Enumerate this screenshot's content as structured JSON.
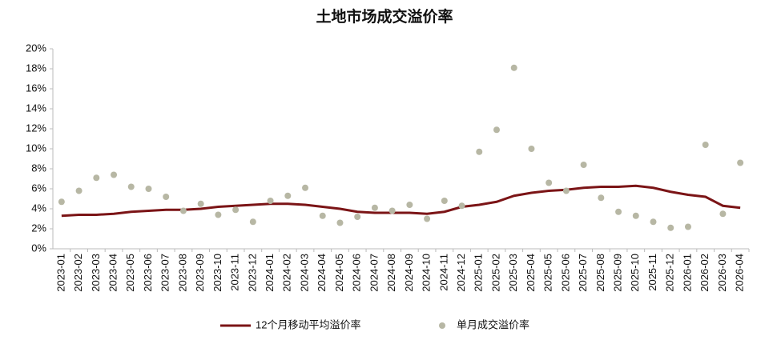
{
  "chart_data": {
    "type": "line",
    "title": "土地市场成交溢价率",
    "categories": [
      "2023-01",
      "2023-02",
      "2023-03",
      "2023-04",
      "2023-05",
      "2023-06",
      "2023-07",
      "2023-08",
      "2023-09",
      "2023-10",
      "2023-11",
      "2023-12",
      "2024-01",
      "2024-02",
      "2024-03",
      "2024-04",
      "2024-05",
      "2024-06",
      "2024-07",
      "2024-08",
      "2024-09",
      "2024-10",
      "2024-11",
      "2024-12",
      "2025-01",
      "2025-02",
      "2025-03",
      "2025-04",
      "2025-05",
      "2025-06",
      "2025-07",
      "2025-08",
      "2025-09",
      "2025-10",
      "2025-11",
      "2025-12",
      "2026-01",
      "2026-02",
      "2026-03",
      "2026-04"
    ],
    "series": [
      {
        "name": "12个月移动平均溢价率",
        "type": "line",
        "color": "#7b1416",
        "values": [
          3.3,
          3.4,
          3.4,
          3.5,
          3.7,
          3.8,
          3.9,
          3.9,
          4.0,
          4.2,
          4.3,
          4.4,
          4.5,
          4.5,
          4.4,
          4.2,
          4.0,
          3.7,
          3.6,
          3.6,
          3.6,
          3.5,
          3.7,
          4.2,
          4.4,
          4.7,
          5.3,
          5.6,
          5.8,
          5.9,
          6.1,
          6.2,
          6.2,
          6.3,
          6.1,
          5.7,
          5.4,
          5.2,
          4.3,
          4.1
        ]
      },
      {
        "name": "单月成交溢价率",
        "type": "scatter",
        "color": "#b7b7a4",
        "values": [
          4.7,
          5.8,
          7.1,
          7.4,
          6.2,
          6.0,
          5.2,
          3.8,
          4.5,
          3.4,
          3.9,
          2.7,
          4.8,
          5.3,
          6.1,
          3.3,
          2.6,
          3.2,
          4.1,
          3.8,
          4.4,
          3.0,
          4.8,
          4.3,
          9.7,
          11.9,
          18.1,
          10.0,
          6.6,
          5.8,
          8.4,
          5.1,
          3.7,
          3.3,
          2.7,
          2.1,
          2.2,
          10.4,
          3.5,
          8.6
        ]
      }
    ],
    "ylim": [
      0,
      20
    ],
    "yticks": [
      {
        "value": 0,
        "label": "0%"
      },
      {
        "value": 2,
        "label": "2%"
      },
      {
        "value": 4,
        "label": "4%"
      },
      {
        "value": 6,
        "label": "6%"
      },
      {
        "value": 8,
        "label": "8%"
      },
      {
        "value": 10,
        "label": "10%"
      },
      {
        "value": 12,
        "label": "12%"
      },
      {
        "value": 14,
        "label": "14%"
      },
      {
        "value": 16,
        "label": "16%"
      },
      {
        "value": 18,
        "label": "18%"
      },
      {
        "value": 20,
        "label": "20%"
      }
    ],
    "grid": false,
    "legend": "bottom"
  }
}
